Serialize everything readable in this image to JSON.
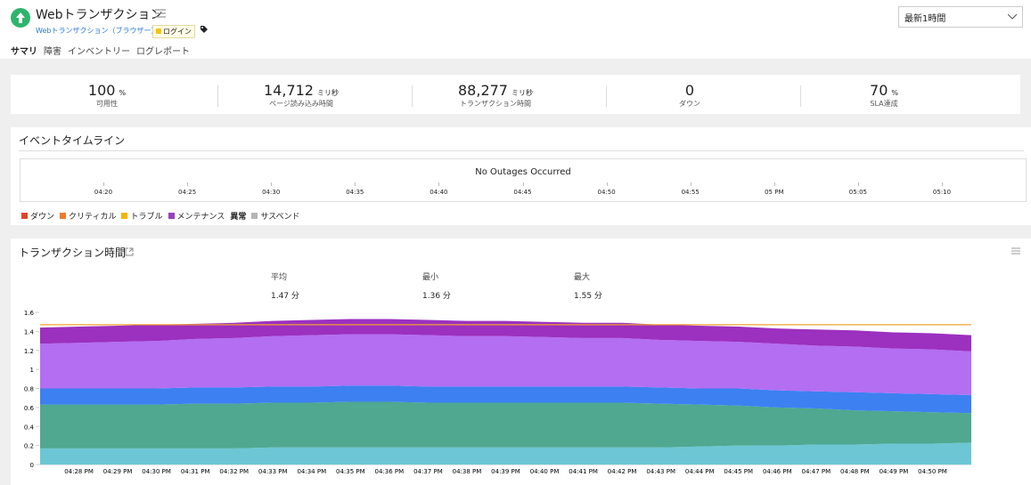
{
  "header": {
    "title": "Webトランザクション",
    "subtitle": "Webトランザクション（ブラウザー）",
    "tag": "ログイン",
    "range": "最新1時間"
  },
  "tabs": [
    "サマリ",
    "障害",
    "インベントリー",
    "ログレポート"
  ],
  "stats": [
    {
      "value": "100",
      "unit": "%",
      "label": "可用性"
    },
    {
      "value": "14,712",
      "unit": "ミリ秒",
      "label": "ページ読み込み時間"
    },
    {
      "value": "88,277",
      "unit": "ミリ秒",
      "label": "トランザクション時間"
    },
    {
      "value": "0",
      "label": "ダウン"
    },
    {
      "value": "70",
      "unit": "%",
      "label": "SLA達成"
    }
  ],
  "timeline": {
    "title": "イベントタイムライン",
    "message": "No Outages Occurred",
    "ticks": [
      "04:20",
      "04:25",
      "04:30",
      "04:35",
      "04:40",
      "04:45",
      "04:50",
      "04:55",
      "05 PM",
      "05:05",
      "05:10"
    ],
    "legend": [
      {
        "name": "ダウン",
        "color": "#e0452b"
      },
      {
        "name": "クリティカル",
        "color": "#f07a30"
      },
      {
        "name": "トラブル",
        "color": "#f4b400"
      },
      {
        "name": "メンテナンス",
        "color": "#9c3fbf"
      },
      {
        "name": "異常"
      },
      {
        "name": "サスペンド",
        "color": "#b5b5b5"
      }
    ]
  },
  "transaction": {
    "title": "トランザクション時間",
    "summary": [
      {
        "label": "平均",
        "value": "1.47 分"
      },
      {
        "label": "最小",
        "value": "1.36 分"
      },
      {
        "label": "最大",
        "value": "1.55 分"
      }
    ]
  },
  "chart_data": {
    "type": "area",
    "categories": [
      null,
      "04:28 PM",
      "04:29 PM",
      "04:30 PM",
      "04:31 PM",
      "04:32 PM",
      "04:33 PM",
      "04:34 PM",
      "04:35 PM",
      "04:36 PM",
      "04:37 PM",
      "04:38 PM",
      "04:39 PM",
      "04:40 PM",
      "04:41 PM",
      "04:42 PM",
      "04:43 PM",
      "04:44 PM",
      "04:45 PM",
      "04:46 PM",
      "04:47 PM",
      "04:48 PM",
      "04:49 PM",
      "04:50 PM",
      null
    ],
    "ylim": [
      0,
      1.6
    ],
    "yticks": [
      0,
      0.2,
      0.4,
      0.6,
      0.8,
      1,
      1.2,
      1.4,
      1.6
    ],
    "stacked": true,
    "series": [
      {
        "color": "#6cc6d4",
        "values": [
          0.17,
          0.17,
          0.17,
          0.17,
          0.17,
          0.17,
          0.18,
          0.18,
          0.18,
          0.18,
          0.18,
          0.18,
          0.18,
          0.18,
          0.18,
          0.18,
          0.18,
          0.19,
          0.2,
          0.2,
          0.21,
          0.21,
          0.22,
          0.22,
          0.23
        ]
      },
      {
        "color": "#4fa88f",
        "values": [
          0.46,
          0.46,
          0.46,
          0.46,
          0.47,
          0.47,
          0.47,
          0.47,
          0.48,
          0.48,
          0.47,
          0.47,
          0.47,
          0.47,
          0.47,
          0.47,
          0.46,
          0.44,
          0.42,
          0.4,
          0.38,
          0.36,
          0.34,
          0.33,
          0.31
        ]
      },
      {
        "color": "#3d80f2",
        "values": [
          0.17,
          0.17,
          0.17,
          0.17,
          0.17,
          0.17,
          0.17,
          0.17,
          0.17,
          0.17,
          0.17,
          0.17,
          0.17,
          0.17,
          0.17,
          0.17,
          0.17,
          0.17,
          0.18,
          0.18,
          0.18,
          0.19,
          0.19,
          0.19,
          0.19
        ]
      },
      {
        "color": "#b36ef2",
        "values": [
          0.47,
          0.48,
          0.49,
          0.5,
          0.51,
          0.52,
          0.53,
          0.54,
          0.54,
          0.54,
          0.54,
          0.53,
          0.53,
          0.52,
          0.51,
          0.51,
          0.5,
          0.5,
          0.49,
          0.49,
          0.48,
          0.48,
          0.47,
          0.47,
          0.46
        ]
      },
      {
        "color": "#9c30bf",
        "values": [
          0.17,
          0.17,
          0.17,
          0.17,
          0.16,
          0.16,
          0.16,
          0.16,
          0.16,
          0.16,
          0.16,
          0.16,
          0.16,
          0.16,
          0.16,
          0.16,
          0.16,
          0.16,
          0.16,
          0.16,
          0.17,
          0.17,
          0.17,
          0.17,
          0.17
        ]
      },
      {
        "type": "line",
        "color": "#f0a030",
        "values": [
          1.47,
          1.47,
          1.47,
          1.47,
          1.47,
          1.47,
          1.47,
          1.47,
          1.47,
          1.47,
          1.47,
          1.47,
          1.47,
          1.47,
          1.47,
          1.47,
          1.47,
          1.47,
          1.47,
          1.47,
          1.47,
          1.47,
          1.47,
          1.47,
          1.47
        ]
      }
    ]
  }
}
